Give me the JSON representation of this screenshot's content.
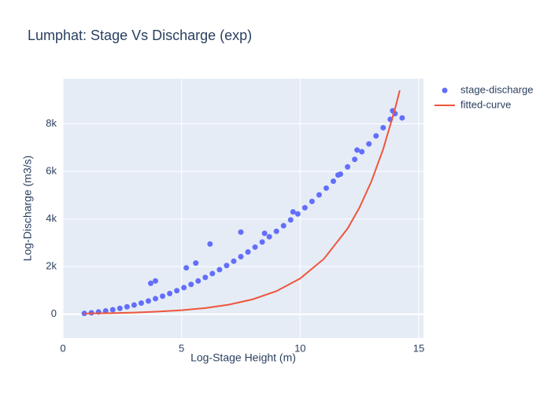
{
  "chart_data": {
    "type": "scatter",
    "title": "Lumphat: Stage Vs Discharge (exp)",
    "x_label": "Log-Stage Height (m)",
    "y_label": "Log-Discharge (m3/s)",
    "xlim": [
      0,
      15.2
    ],
    "ylim": [
      -1000,
      9900
    ],
    "xticks": [
      0,
      5,
      10,
      15
    ],
    "yticks": [
      0,
      {
        "value": 2000,
        "label": "2k"
      },
      {
        "value": 4000,
        "label": "4k"
      },
      {
        "value": 6000,
        "label": "6k"
      },
      {
        "value": 8000,
        "label": "8k"
      }
    ],
    "grid": true,
    "legend": "right",
    "series": [
      {
        "name": "stage-discharge",
        "color": "#636efa",
        "mode": "markers",
        "x": [
          0.9,
          1.2,
          1.5,
          1.8,
          2.1,
          2.4,
          2.7,
          3.0,
          3.3,
          3.6,
          3.9,
          4.2,
          4.5,
          4.8,
          5.1,
          5.4,
          5.7,
          6.0,
          6.3,
          6.6,
          6.9,
          7.2,
          7.5,
          7.8,
          8.1,
          8.4,
          8.7,
          9.0,
          9.3,
          9.6,
          9.9,
          10.2,
          10.5,
          10.8,
          11.1,
          11.4,
          11.7,
          12.0,
          12.3,
          12.6,
          12.9,
          13.2,
          13.5,
          13.8,
          14.0,
          3.7,
          3.9,
          5.2,
          5.6,
          6.2,
          7.5,
          8.5,
          9.7,
          11.6,
          12.4,
          14.3,
          13.9
        ],
        "values": [
          35,
          62,
          97,
          139,
          190,
          248,
          313,
          387,
          468,
          557,
          654,
          759,
          871,
          991,
          1118,
          1254,
          1397,
          1548,
          1707,
          1873,
          2047,
          2229,
          2419,
          2616,
          2821,
          3034,
          3255,
          3483,
          3719,
          3963,
          4214,
          4474,
          4741,
          5016,
          5298,
          5588,
          5886,
          6192,
          6505,
          6827,
          7156,
          7492,
          7837,
          8189,
          8428,
          1300,
          1400,
          1950,
          2150,
          2950,
          3450,
          3400,
          4300,
          5850,
          6900,
          8250,
          8550
        ]
      },
      {
        "name": "fitted-curve",
        "color": "#EF553B",
        "mode": "lines",
        "x": [
          0.9,
          2,
          3,
          4,
          5,
          6,
          7,
          8,
          9,
          10,
          11,
          12,
          12.5,
          13,
          13.5,
          14,
          14.2
        ],
        "values": [
          28,
          46,
          70,
          109,
          169,
          261,
          405,
          627,
          970,
          1501,
          2325,
          3599,
          4478,
          5572,
          6934,
          8627,
          9410
        ]
      }
    ]
  }
}
